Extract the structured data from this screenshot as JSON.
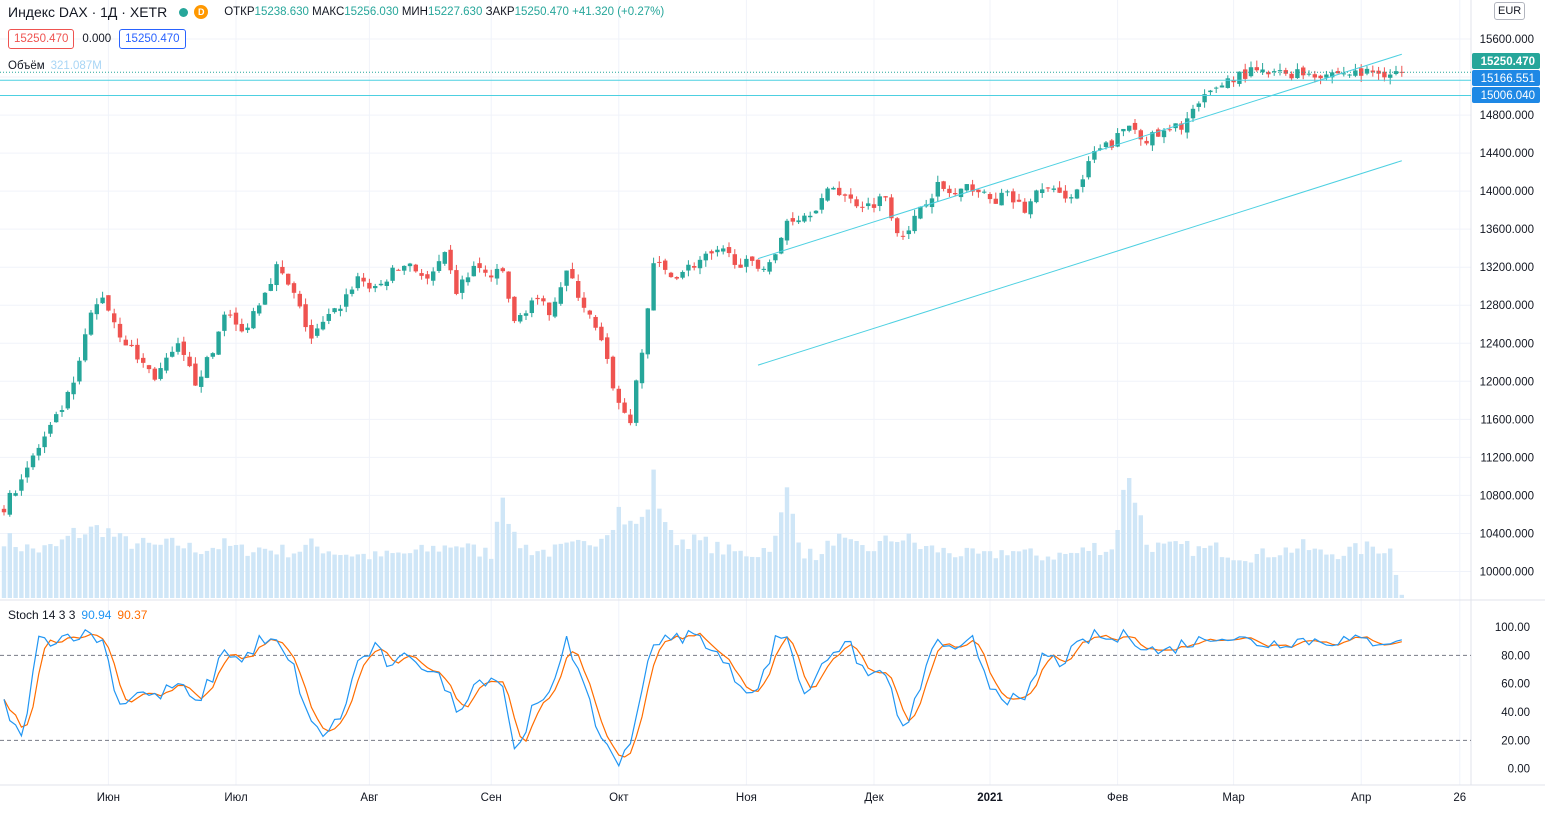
{
  "header": {
    "symbol": "Индекс DAX · 1Д · XETR",
    "interval_badge": "D",
    "open_label": "ОТКР",
    "open_value": "15238.630",
    "high_label": "МАКС",
    "high_value": "15256.030",
    "low_label": "МИН",
    "low_value": "15227.630",
    "close_label": "ЗАКР",
    "close_value": "15250.470",
    "change": "+41.320 (+0.27%)",
    "bid": "15250.470",
    "spread": "0.000",
    "ask": "15250.470"
  },
  "volume_legend": {
    "label": "Объём",
    "value": "321.087M"
  },
  "stoch_legend": {
    "label": "Stoch 14 3 3",
    "k_value": "90.94",
    "d_value": "90.37"
  },
  "currency": "EUR",
  "colors": {
    "up": "#26a69a",
    "down": "#ef5350",
    "volume": "#cfe6f7",
    "channel": "#4dd0e1",
    "stoch_k": "#2196f3",
    "stoch_d": "#ff6d00",
    "grid": "#f0f3fa"
  },
  "price_axis": {
    "labels": [
      "15600.000",
      "15200.000",
      "14800.000",
      "14400.000",
      "14000.000",
      "13600.000",
      "13200.000",
      "12800.000",
      "12400.000",
      "12000.000",
      "11600.000",
      "11200.000",
      "10800.000",
      "10400.000",
      "10000.000"
    ]
  },
  "stoch_axis": {
    "labels": [
      "100.00",
      "80.00",
      "60.00",
      "40.00",
      "20.00",
      "0.00"
    ]
  },
  "price_badges": [
    {
      "text": "15250.470",
      "kind": "last"
    },
    {
      "text": "15166.551",
      "kind": "line"
    },
    {
      "text": "15006.040",
      "kind": "line"
    }
  ],
  "time_axis": {
    "labels": [
      {
        "text": "Июн",
        "bar": 18,
        "bold": false
      },
      {
        "text": "Июл",
        "bar": 40,
        "bold": false
      },
      {
        "text": "Авг",
        "bar": 63,
        "bold": false
      },
      {
        "text": "Сен",
        "bar": 84,
        "bold": false
      },
      {
        "text": "Окт",
        "bar": 106,
        "bold": false
      },
      {
        "text": "Ноя",
        "bar": 128,
        "bold": false
      },
      {
        "text": "Дек",
        "bar": 150,
        "bold": false
      },
      {
        "text": "2021",
        "bar": 170,
        "bold": true
      },
      {
        "text": "Фев",
        "bar": 192,
        "bold": false
      },
      {
        "text": "Мар",
        "bar": 212,
        "bold": false
      },
      {
        "text": "Апр",
        "bar": 234,
        "bold": false
      },
      {
        "text": "26",
        "bar": 251,
        "bold": false
      }
    ]
  },
  "chart_data": {
    "type": "candlestick",
    "title": "Индекс DAX · 1Д · XETR",
    "ylim": [
      9700,
      15800
    ],
    "stoch_ylim": [
      -8,
      112
    ],
    "stoch_levels": [
      80,
      20
    ],
    "horizontal_levels": [
      15250.47,
      15166.551,
      15006.04
    ],
    "channel": {
      "upper": {
        "from": {
          "bar": 130,
          "price": 13290
        },
        "to": {
          "bar": 241,
          "price": 15440
        }
      },
      "lower": {
        "from": {
          "bar": 130,
          "price": 12170
        },
        "to": {
          "bar": 241,
          "price": 14320
        }
      }
    },
    "anchors": [
      {
        "bar": 0,
        "close": 10650,
        "vol": 0.38,
        "k": 45
      },
      {
        "bar": 3,
        "close": 11000,
        "vol": 0.32,
        "k": 20
      },
      {
        "bar": 6,
        "close": 11300,
        "vol": 0.3,
        "k": 90
      },
      {
        "bar": 9,
        "close": 11600,
        "vol": 0.32,
        "k": 92
      },
      {
        "bar": 12,
        "close": 11950,
        "vol": 0.4,
        "k": 95
      },
      {
        "bar": 15,
        "close": 12700,
        "vol": 0.42,
        "k": 95
      },
      {
        "bar": 17,
        "close": 12900,
        "vol": 0.44,
        "k": 90
      },
      {
        "bar": 20,
        "close": 12500,
        "vol": 0.36,
        "k": 45
      },
      {
        "bar": 23,
        "close": 12250,
        "vol": 0.34,
        "k": 55
      },
      {
        "bar": 26,
        "close": 12050,
        "vol": 0.32,
        "k": 50
      },
      {
        "bar": 30,
        "close": 12350,
        "vol": 0.34,
        "k": 60
      },
      {
        "bar": 33,
        "close": 12000,
        "vol": 0.3,
        "k": 45
      },
      {
        "bar": 36,
        "close": 12300,
        "vol": 0.32,
        "k": 65
      },
      {
        "bar": 38,
        "close": 12750,
        "vol": 0.33,
        "k": 85
      },
      {
        "bar": 41,
        "close": 12500,
        "vol": 0.3,
        "k": 75
      },
      {
        "bar": 44,
        "close": 12850,
        "vol": 0.31,
        "k": 90
      },
      {
        "bar": 47,
        "close": 13200,
        "vol": 0.3,
        "k": 88
      },
      {
        "bar": 50,
        "close": 12900,
        "vol": 0.29,
        "k": 70
      },
      {
        "bar": 53,
        "close": 12450,
        "vol": 0.33,
        "k": 30
      },
      {
        "bar": 55,
        "close": 12600,
        "vol": 0.31,
        "k": 25
      },
      {
        "bar": 58,
        "close": 12800,
        "vol": 0.28,
        "k": 35
      },
      {
        "bar": 61,
        "close": 13100,
        "vol": 0.27,
        "k": 75
      },
      {
        "bar": 64,
        "close": 12950,
        "vol": 0.26,
        "k": 85
      },
      {
        "bar": 67,
        "close": 13150,
        "vol": 0.27,
        "k": 70
      },
      {
        "bar": 70,
        "close": 13250,
        "vol": 0.28,
        "k": 82
      },
      {
        "bar": 73,
        "close": 13050,
        "vol": 0.3,
        "k": 70
      },
      {
        "bar": 76,
        "close": 13300,
        "vol": 0.32,
        "k": 60
      },
      {
        "bar": 78,
        "close": 12950,
        "vol": 0.34,
        "k": 40
      },
      {
        "bar": 81,
        "close": 13200,
        "vol": 0.3,
        "k": 60
      },
      {
        "bar": 84,
        "close": 13100,
        "vol": 0.28,
        "k": 65
      },
      {
        "bar": 86,
        "close": 13150,
        "vol": 0.7,
        "k": 60
      },
      {
        "bar": 88,
        "close": 12600,
        "vol": 0.36,
        "k": 12
      },
      {
        "bar": 91,
        "close": 12850,
        "vol": 0.3,
        "k": 40
      },
      {
        "bar": 94,
        "close": 12750,
        "vol": 0.29,
        "k": 50
      },
      {
        "bar": 97,
        "close": 13150,
        "vol": 0.31,
        "k": 95
      },
      {
        "bar": 100,
        "close": 12800,
        "vol": 0.33,
        "k": 55
      },
      {
        "bar": 103,
        "close": 12400,
        "vol": 0.4,
        "k": 22
      },
      {
        "bar": 106,
        "close": 11750,
        "vol": 0.55,
        "k": 5
      },
      {
        "bar": 108,
        "close": 11600,
        "vol": 0.45,
        "k": 15
      },
      {
        "bar": 110,
        "close": 12300,
        "vol": 0.48,
        "k": 60
      },
      {
        "bar": 112,
        "close": 13250,
        "vol": 0.72,
        "k": 90
      },
      {
        "bar": 115,
        "close": 13100,
        "vol": 0.38,
        "k": 90
      },
      {
        "bar": 118,
        "close": 13200,
        "vol": 0.36,
        "k": 95
      },
      {
        "bar": 121,
        "close": 13300,
        "vol": 0.34,
        "k": 90
      },
      {
        "bar": 124,
        "close": 13350,
        "vol": 0.3,
        "k": 75
      },
      {
        "bar": 127,
        "close": 13250,
        "vol": 0.28,
        "k": 60
      },
      {
        "bar": 130,
        "close": 13200,
        "vol": 0.28,
        "k": 55
      },
      {
        "bar": 133,
        "close": 13300,
        "vol": 0.36,
        "k": 90
      },
      {
        "bar": 135,
        "close": 13700,
        "vol": 0.65,
        "k": 95
      },
      {
        "bar": 138,
        "close": 13750,
        "vol": 0.28,
        "k": 50
      },
      {
        "bar": 141,
        "close": 13900,
        "vol": 0.26,
        "k": 75
      },
      {
        "bar": 143,
        "close": 14050,
        "vol": 0.38,
        "k": 85
      },
      {
        "bar": 146,
        "close": 13900,
        "vol": 0.32,
        "k": 85
      },
      {
        "bar": 149,
        "close": 13850,
        "vol": 0.3,
        "k": 65
      },
      {
        "bar": 152,
        "close": 13950,
        "vol": 0.35,
        "k": 70
      },
      {
        "bar": 154,
        "close": 13600,
        "vol": 0.38,
        "k": 35
      },
      {
        "bar": 156,
        "close": 13550,
        "vol": 0.36,
        "k": 30
      },
      {
        "bar": 158,
        "close": 13850,
        "vol": 0.32,
        "k": 60
      },
      {
        "bar": 161,
        "close": 14050,
        "vol": 0.3,
        "k": 92
      },
      {
        "bar": 164,
        "close": 13950,
        "vol": 0.28,
        "k": 80
      },
      {
        "bar": 167,
        "close": 14050,
        "vol": 0.27,
        "k": 90
      },
      {
        "bar": 170,
        "close": 13900,
        "vol": 0.26,
        "k": 60
      },
      {
        "bar": 173,
        "close": 13950,
        "vol": 0.3,
        "k": 50
      },
      {
        "bar": 176,
        "close": 13800,
        "vol": 0.28,
        "k": 45
      },
      {
        "bar": 179,
        "close": 14050,
        "vol": 0.26,
        "k": 80
      },
      {
        "bar": 182,
        "close": 13950,
        "vol": 0.27,
        "k": 75
      },
      {
        "bar": 185,
        "close": 14000,
        "vol": 0.28,
        "k": 85
      },
      {
        "bar": 188,
        "close": 14400,
        "vol": 0.32,
        "k": 95
      },
      {
        "bar": 191,
        "close": 14500,
        "vol": 0.3,
        "k": 90
      },
      {
        "bar": 194,
        "close": 14700,
        "vol": 0.8,
        "k": 95
      },
      {
        "bar": 197,
        "close": 14550,
        "vol": 0.34,
        "k": 85
      },
      {
        "bar": 200,
        "close": 14600,
        "vol": 0.31,
        "k": 82
      },
      {
        "bar": 203,
        "close": 14700,
        "vol": 0.32,
        "k": 88
      },
      {
        "bar": 206,
        "close": 14900,
        "vol": 0.3,
        "k": 90
      },
      {
        "bar": 209,
        "close": 15100,
        "vol": 0.31,
        "k": 95
      },
      {
        "bar": 212,
        "close": 15200,
        "vol": 0.27,
        "k": 92
      },
      {
        "bar": 215,
        "close": 15250,
        "vol": 0.26,
        "k": 90
      },
      {
        "bar": 218,
        "close": 15230,
        "vol": 0.28,
        "k": 88
      },
      {
        "bar": 221,
        "close": 15240,
        "vol": 0.3,
        "k": 90
      },
      {
        "bar": 224,
        "close": 15250,
        "vol": 0.32,
        "k": 91
      },
      {
        "bar": 227,
        "close": 15235,
        "vol": 0.28,
        "k": 90
      },
      {
        "bar": 230,
        "close": 15245,
        "vol": 0.28,
        "k": 91
      },
      {
        "bar": 233,
        "close": 15238,
        "vol": 0.3,
        "k": 90
      },
      {
        "bar": 236,
        "close": 15250,
        "vol": 0.32,
        "k": 90
      },
      {
        "bar": 239,
        "close": 15248,
        "vol": 0.3,
        "k": 91
      },
      {
        "bar": 241,
        "close": 15250.47,
        "vol": 0.02,
        "k": 90.94
      }
    ]
  }
}
